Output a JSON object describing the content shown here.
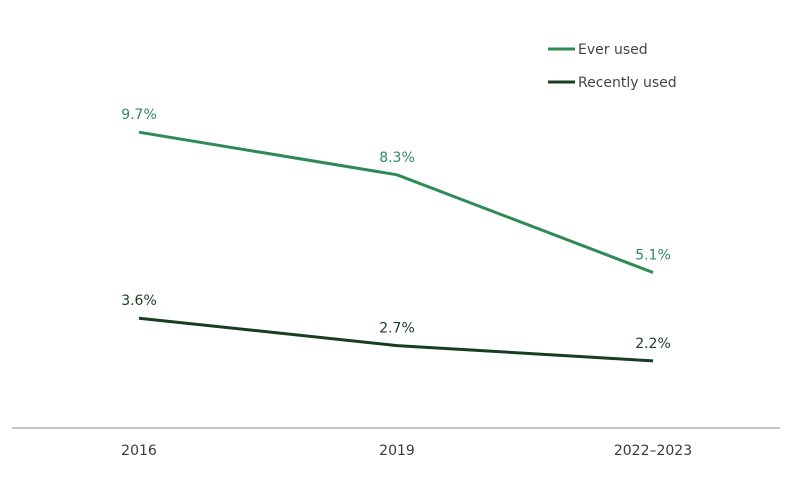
{
  "chart_data": {
    "type": "line",
    "x": [
      "2016",
      "2019",
      "2022–2023"
    ],
    "series": [
      {
        "name": "Ever used",
        "values": [
          9.7,
          8.3,
          5.1
        ],
        "labels": [
          "9.7%",
          "8.3%",
          "5.1%"
        ],
        "color": "#2e8b57"
      },
      {
        "name": "Recently used",
        "values": [
          3.6,
          2.7,
          2.2
        ],
        "labels": [
          "3.6%",
          "2.7%",
          "2.2%"
        ],
        "color": "#173d22"
      }
    ],
    "title": "",
    "xlabel": "",
    "ylabel": "",
    "ylim": [
      0,
      13
    ],
    "grid": false,
    "legend": "top-right"
  }
}
